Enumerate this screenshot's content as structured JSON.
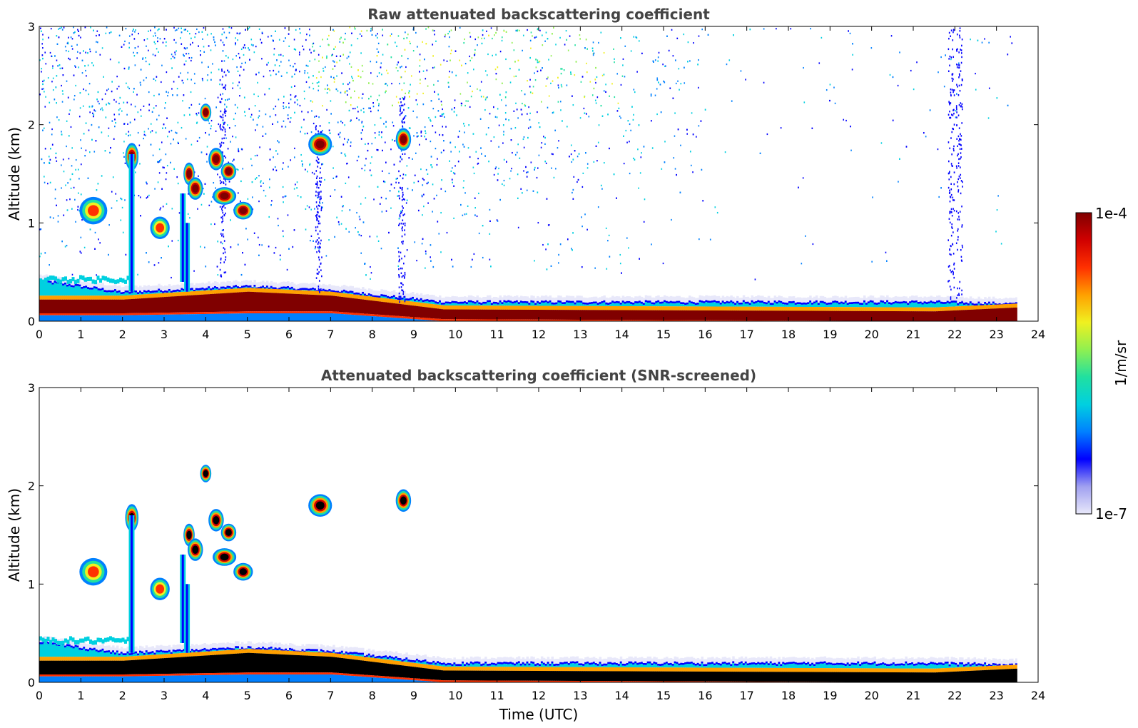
{
  "chart_data": [
    {
      "type": "heatmap",
      "title": "Raw attenuated backscattering coefficient",
      "xlabel": "",
      "ylabel": "Altitude (km)",
      "xlim": [
        0,
        24
      ],
      "ylim": [
        0,
        3
      ],
      "x_ticks": [
        "0",
        "1",
        "2",
        "3",
        "4",
        "5",
        "6",
        "7",
        "8",
        "9",
        "10",
        "11",
        "12",
        "13",
        "14",
        "15",
        "16",
        "17",
        "18",
        "19",
        "20",
        "21",
        "22",
        "23",
        "24"
      ],
      "y_ticks": [
        "0",
        "1",
        "2",
        "3"
      ],
      "data_end_hour": 23.5,
      "surface_layer": [
        {
          "x": 0,
          "top_km": 0.42,
          "core_km": [
            0.08,
            0.22
          ]
        },
        {
          "x": 2,
          "top_km": 0.3,
          "core_km": [
            0.08,
            0.22
          ]
        },
        {
          "x": 5,
          "top_km": 0.36,
          "core_km": [
            0.1,
            0.3
          ]
        },
        {
          "x": 7,
          "top_km": 0.32,
          "core_km": [
            0.1,
            0.26
          ]
        },
        {
          "x": 9.7,
          "top_km": 0.2,
          "core_km": [
            0.02,
            0.12
          ]
        },
        {
          "x": 21.5,
          "top_km": 0.2,
          "core_km": [
            0.0,
            0.1
          ]
        },
        {
          "x": 23.5,
          "top_km": 0.18,
          "core_km": [
            0.0,
            0.14
          ]
        }
      ],
      "cloud_features": [
        {
          "x_range": [
            2.1,
            2.35
          ],
          "alt_km": [
            1.55,
            1.8
          ],
          "intensity": "high"
        },
        {
          "x_range": [
            3.5,
            3.7
          ],
          "alt_km": [
            1.4,
            1.6
          ],
          "intensity": "high"
        },
        {
          "x_range": [
            3.6,
            3.9
          ],
          "alt_km": [
            1.25,
            1.45
          ],
          "intensity": "high"
        },
        {
          "x_range": [
            3.9,
            4.1
          ],
          "alt_km": [
            2.05,
            2.2
          ],
          "intensity": "high"
        },
        {
          "x_range": [
            4.1,
            4.4
          ],
          "alt_km": [
            1.55,
            1.75
          ],
          "intensity": "high"
        },
        {
          "x_range": [
            4.4,
            4.7
          ],
          "alt_km": [
            1.45,
            1.6
          ],
          "intensity": "high"
        },
        {
          "x_range": [
            4.2,
            4.7
          ],
          "alt_km": [
            1.2,
            1.35
          ],
          "intensity": "high"
        },
        {
          "x_range": [
            4.7,
            5.1
          ],
          "alt_km": [
            1.05,
            1.2
          ],
          "intensity": "high"
        },
        {
          "x_range": [
            6.5,
            7.0
          ],
          "alt_km": [
            1.7,
            1.9
          ],
          "intensity": "high"
        },
        {
          "x_range": [
            8.6,
            8.9
          ],
          "alt_km": [
            1.75,
            1.95
          ],
          "intensity": "high"
        },
        {
          "x_range": [
            1.0,
            1.6
          ],
          "alt_km": [
            1.0,
            1.25
          ],
          "intensity": "medium"
        },
        {
          "x_range": [
            2.7,
            3.1
          ],
          "alt_km": [
            0.85,
            1.05
          ],
          "intensity": "medium"
        }
      ]
    },
    {
      "type": "heatmap",
      "title": "Attenuated backscattering coefficient (SNR-screened)",
      "xlabel": "Time (UTC)",
      "ylabel": "Altitude (km)",
      "xlim": [
        0,
        24
      ],
      "ylim": [
        0,
        3
      ],
      "x_ticks": [
        "0",
        "1",
        "2",
        "3",
        "4",
        "5",
        "6",
        "7",
        "8",
        "9",
        "10",
        "11",
        "12",
        "13",
        "14",
        "15",
        "16",
        "17",
        "18",
        "19",
        "20",
        "21",
        "22",
        "23",
        "24"
      ],
      "y_ticks": [
        "0",
        "1",
        "2",
        "3"
      ],
      "data_end_hour": 23.5,
      "screened_saturated_color": "#000000"
    }
  ],
  "colorbar": {
    "label": "1/m/sr",
    "max_label": "1e-4",
    "min_label": "1e-7",
    "colormap": [
      "#e8e8fa",
      "#a0a0f0",
      "#0000ff",
      "#0080ff",
      "#00d0e0",
      "#20e0a0",
      "#90f050",
      "#f0f020",
      "#ffa000",
      "#ff3000",
      "#d00000",
      "#800000"
    ]
  }
}
